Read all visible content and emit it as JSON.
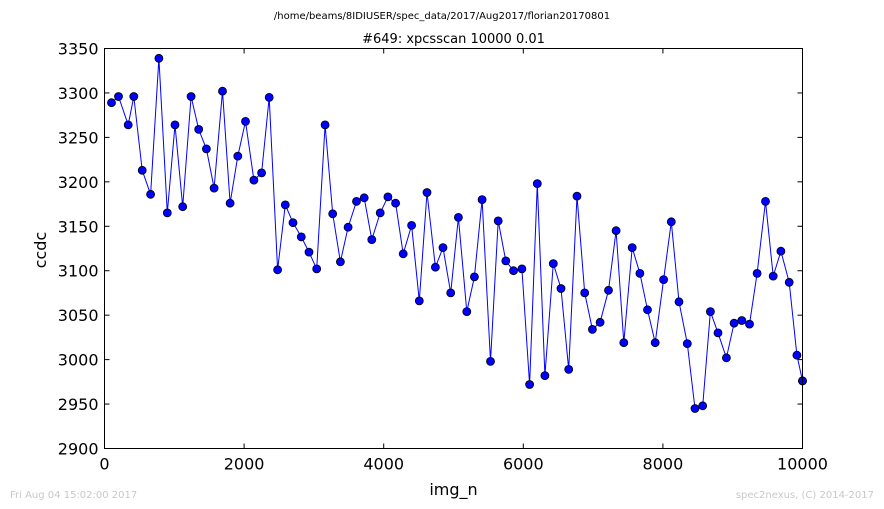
{
  "suptitle": "/home/beams/8IDIUSER/spec_data/2017/Aug2017/florian20170801",
  "footer": {
    "left": "Fri Aug 04 15:02:00 2017",
    "right": "spec2nexus, (C) 2014-2017"
  },
  "colors": {
    "series": "#0000ff",
    "axes": "#000000",
    "footer": "#c8c8c8"
  },
  "chart_data": {
    "type": "line",
    "title": "#649: xpcsscan 10000 0.01",
    "xlabel": "img_n",
    "ylabel": "ccdc",
    "xlim": [
      0,
      10000
    ],
    "ylim": [
      2900,
      3350
    ],
    "xticks": [
      0,
      2000,
      4000,
      6000,
      8000,
      10000
    ],
    "yticks": [
      2900,
      2950,
      3000,
      3050,
      3100,
      3150,
      3200,
      3250,
      3300,
      3350
    ],
    "grid": false,
    "marker": "circle",
    "series": [
      {
        "x": [
          100,
          200,
          340,
          420,
          540,
          660,
          780,
          900,
          1010,
          1120,
          1240,
          1350,
          1460,
          1570,
          1690,
          1800,
          1910,
          2020,
          2140,
          2250,
          2360,
          2480,
          2590,
          2700,
          2820,
          2930,
          3040,
          3160,
          3270,
          3380,
          3490,
          3610,
          3720,
          3830,
          3950,
          4060,
          4170,
          4280,
          4400,
          4510,
          4620,
          4740,
          4850,
          4960,
          5070,
          5190,
          5300,
          5410,
          5530,
          5640,
          5750,
          5860,
          5980,
          6090,
          6200,
          6310,
          6430,
          6540,
          6650,
          6770,
          6880,
          6990,
          7100,
          7220,
          7330,
          7440,
          7560,
          7670,
          7780,
          7890,
          8010,
          8120,
          8230,
          8350,
          8460,
          8570,
          8680,
          8790,
          8910,
          9020,
          9130,
          9240,
          9350,
          9470,
          9580,
          9690,
          9810,
          9920,
          10000,
          10000
        ],
        "values": [
          3289,
          3296,
          3264,
          3296,
          3213,
          3186,
          3339,
          3165,
          3264,
          3172,
          3296,
          3259,
          3237,
          3193,
          3302,
          3176,
          3229,
          3268,
          3202,
          3210,
          3295,
          3101,
          3174,
          3154,
          3138,
          3121,
          3102,
          3264,
          3164,
          3110,
          3149,
          3178,
          3182,
          3135,
          3165,
          3183,
          3176,
          3119,
          3151,
          3066,
          3188,
          3104,
          3126,
          3075,
          3160,
          3054,
          3093,
          3180,
          2998,
          3156,
          3111,
          3100,
          3102,
          2972,
          3198,
          2982,
          3108,
          3080,
          2989,
          3184,
          3075,
          3034,
          3042,
          3078,
          3145,
          3019,
          3126,
          3097,
          3056,
          3019,
          3090,
          3155,
          3065,
          3018,
          2945,
          2948,
          3054,
          3030,
          3002,
          3041,
          3044,
          3040,
          3097,
          3178,
          3094,
          3122,
          3087,
          3005,
          2976,
          2976
        ]
      }
    ]
  }
}
